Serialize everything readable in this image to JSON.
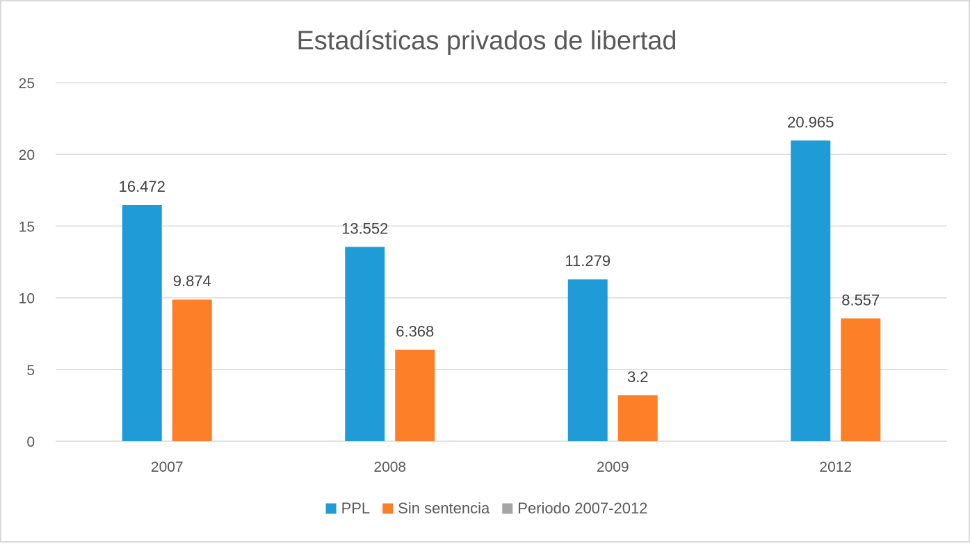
{
  "chart_data": {
    "type": "bar",
    "title": "Estadísticas privados de libertad",
    "xlabel": "",
    "ylabel": "",
    "categories": [
      "2007",
      "2008",
      "2009",
      "2012"
    ],
    "ylim": [
      0,
      25
    ],
    "yticks": [
      0,
      5,
      10,
      15,
      20,
      25
    ],
    "grid": true,
    "legend_position": "bottom",
    "series": [
      {
        "name": "PPL",
        "color": "#1f9bd7",
        "values": [
          16.472,
          13.552,
          11.279,
          20.965
        ],
        "data_labels": [
          "16.472",
          "13.552",
          "11.279",
          "20.965"
        ]
      },
      {
        "name": "Sin sentencia",
        "color": "#fd7f28",
        "values": [
          9.874,
          6.368,
          3.2,
          8.557
        ],
        "data_labels": [
          "9.874",
          "6.368",
          "3.2",
          "8.557"
        ]
      },
      {
        "name": "Periodo 2007-2012",
        "color": "#a5a5a5",
        "values": [
          null,
          null,
          null,
          null
        ],
        "data_labels": []
      }
    ]
  }
}
